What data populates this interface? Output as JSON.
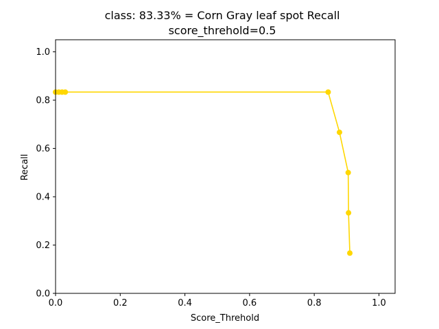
{
  "chart_data": {
    "type": "line",
    "title": "class: 83.33% = Corn Gray leaf spot Recall",
    "subtitle": "score_threhold=0.5",
    "xlabel": "Score_Threhold",
    "ylabel": "Recall",
    "xlim": [
      0.0,
      1.05
    ],
    "ylim": [
      0.0,
      1.05
    ],
    "x_ticks": [
      "0.0",
      "0.2",
      "0.4",
      "0.6",
      "0.8",
      "1.0"
    ],
    "y_ticks": [
      "0.0",
      "0.2",
      "0.4",
      "0.6",
      "0.8",
      "1.0"
    ],
    "grid": false,
    "series": [
      {
        "color": "#FFD700",
        "x": [
          0.0,
          0.01,
          0.02,
          0.03,
          0.843,
          0.878,
          0.905,
          0.906,
          0.91
        ],
        "y": [
          0.8333,
          0.8333,
          0.8333,
          0.8333,
          0.8333,
          0.6667,
          0.5,
          0.3333,
          0.1667
        ]
      }
    ]
  }
}
